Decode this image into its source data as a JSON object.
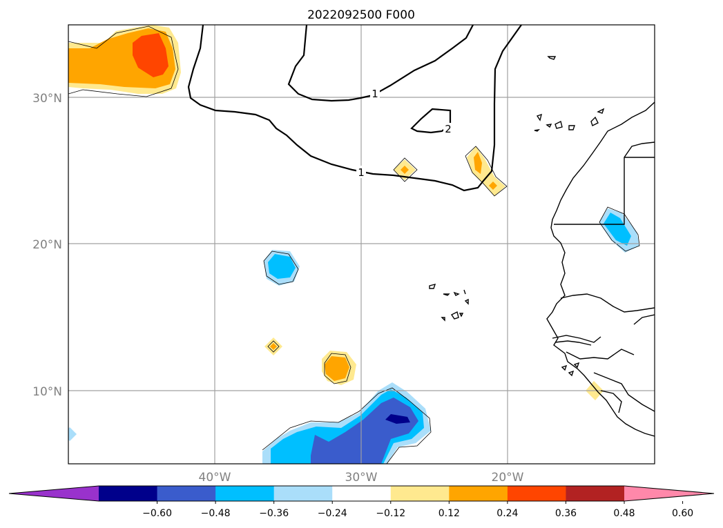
{
  "map": {
    "title": "2022092500 F000",
    "lat_ticks": [
      "30°N",
      "20°N",
      "10°N"
    ],
    "lon_ticks": [
      "40°W",
      "30°W",
      "20°W"
    ],
    "extent": {
      "lon_min": -50,
      "lon_max": -10,
      "lat_min": 5,
      "lat_max": 35
    }
  },
  "contours": {
    "labels": [
      "1",
      "1",
      "2"
    ]
  },
  "colorbar": {
    "tick_labels": [
      "−0.60",
      "−0.48",
      "−0.36",
      "−0.24",
      "−0.12",
      "0.12",
      "0.24",
      "0.36",
      "0.48",
      "0.60"
    ],
    "colors": [
      "#9932cc",
      "#00008b",
      "#3a5ccc",
      "#00bfff",
      "#aadefa",
      "#ffffff",
      "#ffe98f",
      "#ffa500",
      "#ff4500",
      "#b22222",
      "#ff88aa"
    ]
  }
}
